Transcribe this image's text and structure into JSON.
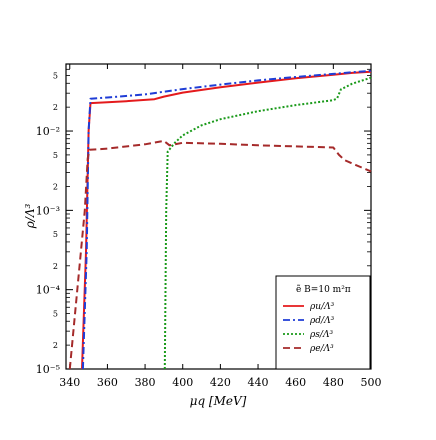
{
  "chart_data": {
    "type": "line",
    "xlabel": "μq [MeV]",
    "ylabel": "ρ/Λ³",
    "xlim": [
      338,
      500
    ],
    "ylim": [
      1e-05,
      0.07
    ],
    "yscale": "log",
    "x_ticks": [
      "340",
      "360",
      "380",
      "400",
      "420",
      "440",
      "460",
      "480",
      "500"
    ],
    "y_major_ticks": [
      "10⁻⁵",
      "10⁻⁴",
      "10⁻³",
      "10⁻²"
    ],
    "y_minor_labels": [
      "2",
      "5"
    ],
    "legend": {
      "title": "ẽ B=10 m²π",
      "position": "bottom-right",
      "entries": [
        "ρu/Λ³",
        "ρd/Λ³",
        "ρs/Λ³",
        "ρe/Λ³"
      ]
    },
    "series": [
      {
        "name": "ρu/Λ³",
        "color": "#e41a1c",
        "dash": "solid",
        "x": [
          346.5,
          348.6,
          350,
          351,
          360,
          370,
          380,
          385,
          390,
          400,
          420,
          440,
          460,
          480,
          490,
          500
        ],
        "y": [
          1e-05,
          0.0003,
          0.01,
          0.0225,
          0.023,
          0.0238,
          0.0247,
          0.0252,
          0.0272,
          0.0305,
          0.0356,
          0.0408,
          0.0462,
          0.0513,
          0.054,
          0.056
        ]
      },
      {
        "name": "ρd/Λ³",
        "color": "#1f3dd6",
        "dash": "dashdot",
        "x": [
          347,
          349,
          350,
          351,
          360,
          380,
          400,
          420,
          440,
          460,
          480,
          490,
          500
        ],
        "y": [
          1e-05,
          0.0003,
          0.01,
          0.0255,
          0.0265,
          0.029,
          0.0338,
          0.0385,
          0.0435,
          0.048,
          0.0525,
          0.055,
          0.0575
        ]
      },
      {
        "name": "ρs/Λ³",
        "color": "#1a9a1a",
        "dash": "dotted",
        "x": [
          390.5,
          391.2,
          392,
          394,
          396,
          400,
          410,
          420,
          440,
          460,
          480,
          482,
          484,
          490,
          500
        ],
        "y": [
          1e-05,
          0.001,
          0.0055,
          0.0063,
          0.0072,
          0.0088,
          0.0118,
          0.0141,
          0.0178,
          0.0212,
          0.0245,
          0.0258,
          0.0335,
          0.0395,
          0.047
        ]
      },
      {
        "name": "ρe/Λ³",
        "color": "#a52a2a",
        "dash": "dashed",
        "x": [
          340,
          344,
          348,
          349.5,
          350.5,
          360,
          380,
          390,
          393,
          400,
          420,
          440,
          460,
          480,
          483,
          486,
          490,
          500
        ],
        "y": [
          1e-05,
          0.0001,
          0.001,
          0.0045,
          0.0058,
          0.006,
          0.0068,
          0.0075,
          0.0066,
          0.0071,
          0.0069,
          0.0066,
          0.0064,
          0.0062,
          0.005,
          0.0043,
          0.0039,
          0.0031
        ]
      }
    ]
  }
}
